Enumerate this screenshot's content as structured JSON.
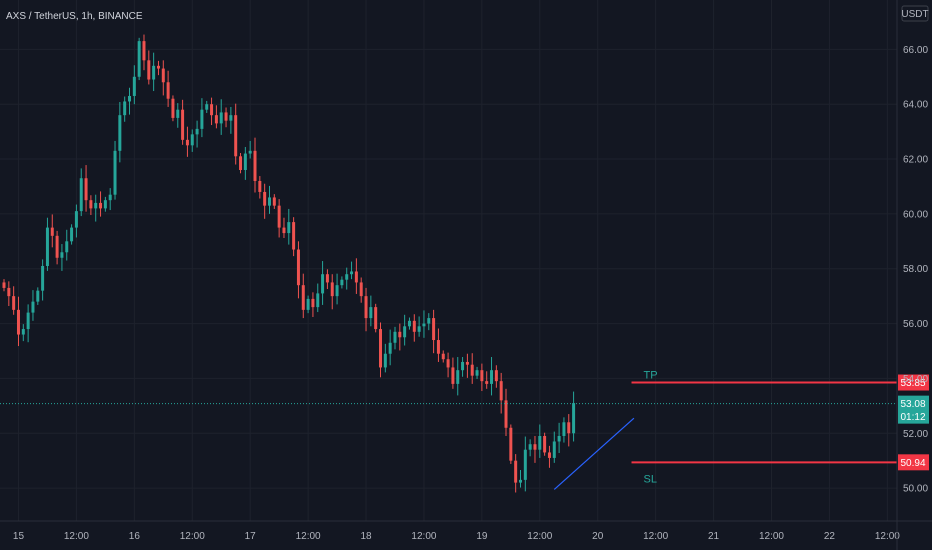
{
  "header": {
    "symbol": "AXS / TetherUS, 1h, BINANCE",
    "currency": "USDT"
  },
  "annotations": {
    "tp_label": "TP",
    "sl_label": "SL",
    "tp_value": "53.85",
    "sl_value": "50.94",
    "last_price": "53.08",
    "countdown": "01:12"
  },
  "colors": {
    "background": "#131722",
    "grid": "#1e222d",
    "up": "#26a69a",
    "down": "#ef5350",
    "level_line": "#f23645",
    "trendline": "#2962ff",
    "text": "#b2b5be"
  },
  "chart_data": {
    "type": "candlestick",
    "title": "AXS / TetherUS, 1h, BINANCE",
    "ylabel": "USDT",
    "ylim": [
      48.8,
      67.8
    ],
    "y_ticks": [
      "50.00",
      "52.00",
      "54.00",
      "56.00",
      "58.00",
      "60.00",
      "62.00",
      "64.00",
      "66.00"
    ],
    "x_ticks": [
      "15",
      "12:00",
      "16",
      "12:00",
      "17",
      "12:00",
      "18",
      "12:00",
      "19",
      "12:00",
      "20",
      "12:00",
      "21",
      "12:00",
      "22",
      "12:00"
    ],
    "grid": true,
    "levels": [
      {
        "label": "TP",
        "value": 53.85
      },
      {
        "label": "SL",
        "value": 50.94
      }
    ],
    "last_price": 53.08,
    "close_series": [
      57.3,
      57.0,
      56.5,
      55.6,
      55.8,
      56.4,
      56.8,
      57.2,
      58.1,
      59.5,
      59.2,
      58.4,
      58.6,
      59.0,
      59.5,
      60.1,
      61.3,
      60.5,
      60.2,
      60.4,
      60.2,
      60.5,
      60.7,
      62.3,
      63.6,
      64.1,
      64.3,
      65.0,
      66.3,
      65.6,
      64.9,
      65.4,
      65.3,
      64.8,
      64.2,
      63.5,
      63.8,
      62.7,
      62.5,
      62.9,
      63.1,
      63.8,
      64.0,
      63.6,
      63.3,
      63.7,
      63.4,
      63.6,
      62.1,
      61.6,
      62.2,
      62.3,
      61.2,
      60.8,
      60.3,
      60.6,
      60.3,
      59.5,
      59.3,
      59.7,
      58.7,
      57.4,
      56.5,
      56.9,
      56.6,
      57.1,
      57.8,
      57.5,
      57.0,
      57.4,
      57.6,
      57.8,
      57.9,
      57.5,
      57.0,
      56.2,
      56.6,
      55.8,
      54.4,
      54.9,
      55.3,
      55.7,
      55.5,
      55.9,
      56.1,
      55.7,
      55.9,
      56.0,
      56.2,
      55.4,
      54.9,
      54.7,
      54.4,
      53.8,
      54.3,
      54.6,
      54.5,
      54.1,
      54.3,
      53.9,
      53.8,
      54.3,
      53.9,
      53.2,
      52.2,
      51.0,
      50.2,
      50.3,
      51.4,
      51.6,
      51.4,
      51.9,
      51.3,
      51.1,
      51.7,
      51.9,
      52.4,
      52.0,
      53.1
    ],
    "x_start": "2021-08-14 21:00",
    "interval": "1h",
    "x_end_label": "12:00"
  }
}
